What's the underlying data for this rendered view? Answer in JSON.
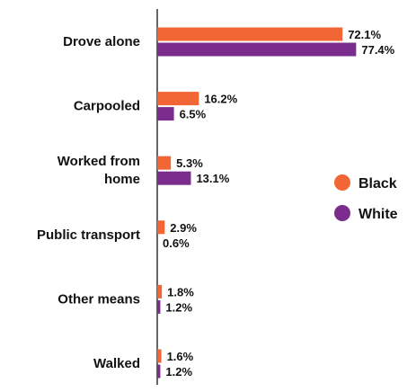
{
  "chart_data": {
    "type": "bar",
    "orientation": "horizontal",
    "categories": [
      [
        "Drove alone"
      ],
      [
        "Carpooled"
      ],
      [
        "Worked from",
        "home"
      ],
      [
        "Public transport"
      ],
      [
        "Other means"
      ],
      [
        "Walked"
      ]
    ],
    "series": [
      {
        "name": "Black",
        "color": "#f26535",
        "values": [
          72.1,
          16.2,
          5.3,
          2.9,
          1.8,
          1.6
        ],
        "labels": [
          "72.1%",
          "16.2%",
          "5.3%",
          "2.9%",
          "1.8%",
          "1.6%"
        ]
      },
      {
        "name": "White",
        "color": "#7b2d8e",
        "values": [
          77.4,
          6.5,
          13.1,
          0.6,
          1.2,
          1.2
        ],
        "labels": [
          "77.4%",
          "6.5%",
          "13.1%",
          "0.6%",
          "1.2%",
          "1.2%"
        ]
      }
    ],
    "xlim": [
      0,
      100
    ],
    "legend_position": "right",
    "axis_color": "#333333"
  }
}
